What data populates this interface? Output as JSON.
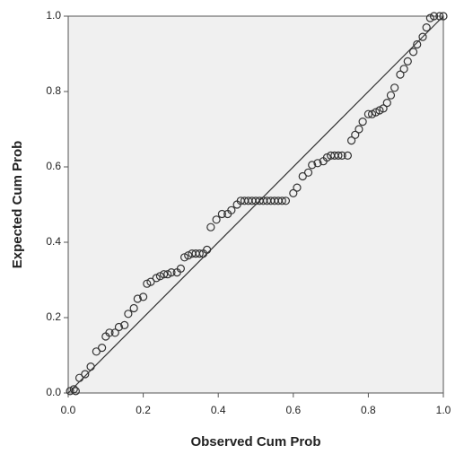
{
  "chart_data": {
    "type": "scatter",
    "xlabel": "Observed Cum Prob",
    "ylabel": "Expected Cum Prob",
    "xlim": [
      0,
      1
    ],
    "ylim": [
      0,
      1
    ],
    "xticks": [
      {
        "value": 0,
        "label": "0.0"
      },
      0.2,
      0.4,
      0.6,
      0.8,
      {
        "value": 1,
        "label": "1.0"
      }
    ],
    "yticks": [
      {
        "value": 0,
        "label": "0.0"
      },
      0.2,
      0.4,
      0.6,
      0.8,
      {
        "value": 1,
        "label": "1.0"
      }
    ],
    "color": "#333333",
    "x": [
      0.005,
      0.015,
      0.02,
      0.03,
      0.045,
      0.06,
      0.075,
      0.09,
      0.1,
      0.11,
      0.125,
      0.135,
      0.15,
      0.16,
      0.175,
      0.185,
      0.2,
      0.21,
      0.22,
      0.235,
      0.245,
      0.255,
      0.265,
      0.275,
      0.29,
      0.3,
      0.31,
      0.32,
      0.33,
      0.34,
      0.35,
      0.36,
      0.37,
      0.38,
      0.395,
      0.41,
      0.425,
      0.435,
      0.45,
      0.46,
      0.47,
      0.48,
      0.49,
      0.5,
      0.51,
      0.52,
      0.53,
      0.54,
      0.55,
      0.56,
      0.57,
      0.58,
      0.6,
      0.61,
      0.625,
      0.64,
      0.65,
      0.665,
      0.68,
      0.69,
      0.7,
      0.71,
      0.72,
      0.73,
      0.745,
      0.755,
      0.765,
      0.775,
      0.785,
      0.8,
      0.81,
      0.82,
      0.83,
      0.84,
      0.85,
      0.86,
      0.87,
      0.885,
      0.895,
      0.905,
      0.92,
      0.93,
      0.945,
      0.955,
      0.965,
      0.975,
      0.99,
      1.0
    ],
    "values": [
      0.005,
      0.01,
      0.005,
      0.04,
      0.05,
      0.07,
      0.11,
      0.12,
      0.15,
      0.16,
      0.16,
      0.175,
      0.18,
      0.21,
      0.225,
      0.25,
      0.255,
      0.29,
      0.295,
      0.305,
      0.31,
      0.315,
      0.315,
      0.32,
      0.32,
      0.33,
      0.36,
      0.365,
      0.37,
      0.37,
      0.37,
      0.37,
      0.38,
      0.44,
      0.46,
      0.475,
      0.475,
      0.485,
      0.5,
      0.51,
      0.51,
      0.51,
      0.51,
      0.51,
      0.51,
      0.51,
      0.51,
      0.51,
      0.51,
      0.51,
      0.51,
      0.51,
      0.53,
      0.545,
      0.575,
      0.585,
      0.605,
      0.61,
      0.615,
      0.625,
      0.63,
      0.63,
      0.63,
      0.63,
      0.63,
      0.67,
      0.685,
      0.7,
      0.72,
      0.74,
      0.74,
      0.745,
      0.75,
      0.755,
      0.77,
      0.79,
      0.81,
      0.845,
      0.86,
      0.88,
      0.905,
      0.925,
      0.945,
      0.97,
      0.995,
      1.0,
      1.0,
      1.0
    ]
  }
}
